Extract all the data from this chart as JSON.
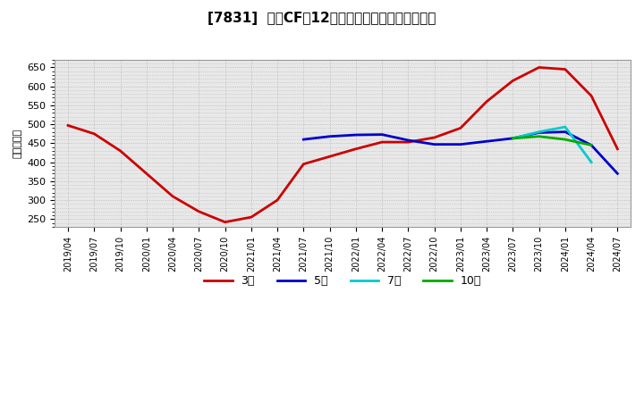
{
  "title": "[7831]  営業CFの12か月移動合計の平均値の推移",
  "ylabel": "（百万円）",
  "ylim": [
    230,
    670
  ],
  "yticks": [
    250,
    300,
    350,
    400,
    450,
    500,
    550,
    600,
    650
  ],
  "background_color": "#ffffff",
  "plot_bg_color": "#f0f0f0",
  "grid_color": "#cccccc",
  "series": {
    "3yr": {
      "color": "#cc0000",
      "linewidth": 2.0,
      "x": [
        "2019/04",
        "2019/07",
        "2019/10",
        "2020/01",
        "2020/04",
        "2020/07",
        "2020/10",
        "2021/01",
        "2021/04",
        "2021/07",
        "2021/10",
        "2022/01",
        "2022/04",
        "2022/07",
        "2022/10",
        "2023/01",
        "2023/04",
        "2023/07",
        "2023/10",
        "2024/01",
        "2024/04",
        "2024/07"
      ],
      "y": [
        497,
        475,
        430,
        370,
        310,
        270,
        242,
        255,
        300,
        395,
        415,
        435,
        453,
        453,
        465,
        490,
        560,
        615,
        650,
        645,
        575,
        435
      ]
    },
    "5yr": {
      "color": "#0000cc",
      "linewidth": 2.0,
      "x": [
        "2021/07",
        "2021/10",
        "2022/01",
        "2022/04",
        "2022/07",
        "2022/10",
        "2023/01",
        "2023/04",
        "2023/07",
        "2023/10",
        "2024/01",
        "2024/04",
        "2024/07"
      ],
      "y": [
        460,
        468,
        472,
        473,
        458,
        447,
        447,
        455,
        463,
        478,
        480,
        445,
        370
      ]
    },
    "7yr": {
      "color": "#00cccc",
      "linewidth": 2.0,
      "x": [
        "2023/07",
        "2023/10",
        "2024/01",
        "2024/04"
      ],
      "y": [
        463,
        480,
        493,
        400
      ]
    },
    "10yr": {
      "color": "#00aa00",
      "linewidth": 2.0,
      "x": [
        "2023/07",
        "2023/10",
        "2024/01",
        "2024/04"
      ],
      "y": [
        463,
        468,
        460,
        445
      ]
    }
  },
  "legend": [
    {
      "label": "3年",
      "color": "#cc0000"
    },
    {
      "label": "5年",
      "color": "#0000cc"
    },
    {
      "label": "7年",
      "color": "#00cccc"
    },
    {
      "label": "10年",
      "color": "#00aa00"
    }
  ],
  "xtick_labels": [
    "2019/04",
    "2019/07",
    "2019/10",
    "2020/01",
    "2020/04",
    "2020/07",
    "2020/10",
    "2021/01",
    "2021/04",
    "2021/07",
    "2021/10",
    "2022/01",
    "2022/04",
    "2022/07",
    "2022/10",
    "2023/01",
    "2023/04",
    "2023/07",
    "2023/10",
    "2024/01",
    "2024/04",
    "2024/07"
  ]
}
